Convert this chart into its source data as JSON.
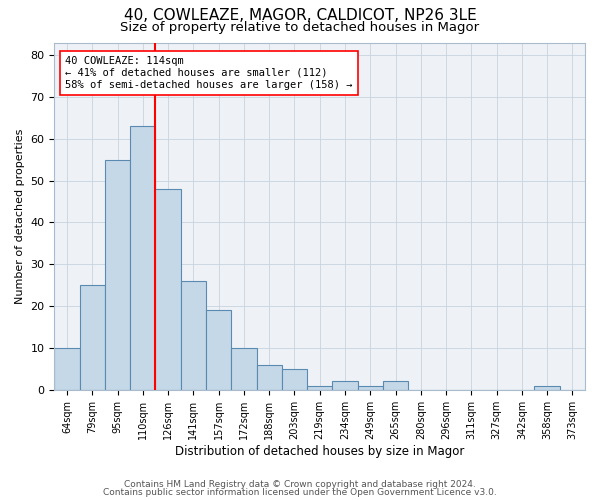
{
  "title": "40, COWLEAZE, MAGOR, CALDICOT, NP26 3LE",
  "subtitle": "Size of property relative to detached houses in Magor",
  "xlabel": "Distribution of detached houses by size in Magor",
  "ylabel": "Number of detached properties",
  "categories": [
    "64sqm",
    "79sqm",
    "95sqm",
    "110sqm",
    "126sqm",
    "141sqm",
    "157sqm",
    "172sqm",
    "188sqm",
    "203sqm",
    "219sqm",
    "234sqm",
    "249sqm",
    "265sqm",
    "280sqm",
    "296sqm",
    "311sqm",
    "327sqm",
    "342sqm",
    "358sqm",
    "373sqm"
  ],
  "values": [
    10,
    25,
    55,
    63,
    48,
    26,
    19,
    10,
    6,
    5,
    1,
    2,
    1,
    2,
    0,
    0,
    0,
    0,
    0,
    1,
    0
  ],
  "bar_color": "#c5d8e8",
  "bar_edge_color": "#5a8ab0",
  "red_line_x": 3.5,
  "annotation_label": "40 COWLEAZE: 114sqm\n← 41% of detached houses are smaller (112)\n58% of semi-detached houses are larger (158) →",
  "ylim": [
    0,
    83
  ],
  "yticks": [
    0,
    10,
    20,
    30,
    40,
    50,
    60,
    70,
    80
  ],
  "footer1": "Contains HM Land Registry data © Crown copyright and database right 2024.",
  "footer2": "Contains public sector information licensed under the Open Government Licence v3.0.",
  "background_color": "#eef2f7",
  "grid_color": "#c8d4e0",
  "title_fontsize": 11,
  "subtitle_fontsize": 9.5,
  "annotation_fontsize": 7.5,
  "footer_fontsize": 6.5,
  "ylabel_fontsize": 8,
  "xlabel_fontsize": 8.5,
  "tick_fontsize": 7
}
